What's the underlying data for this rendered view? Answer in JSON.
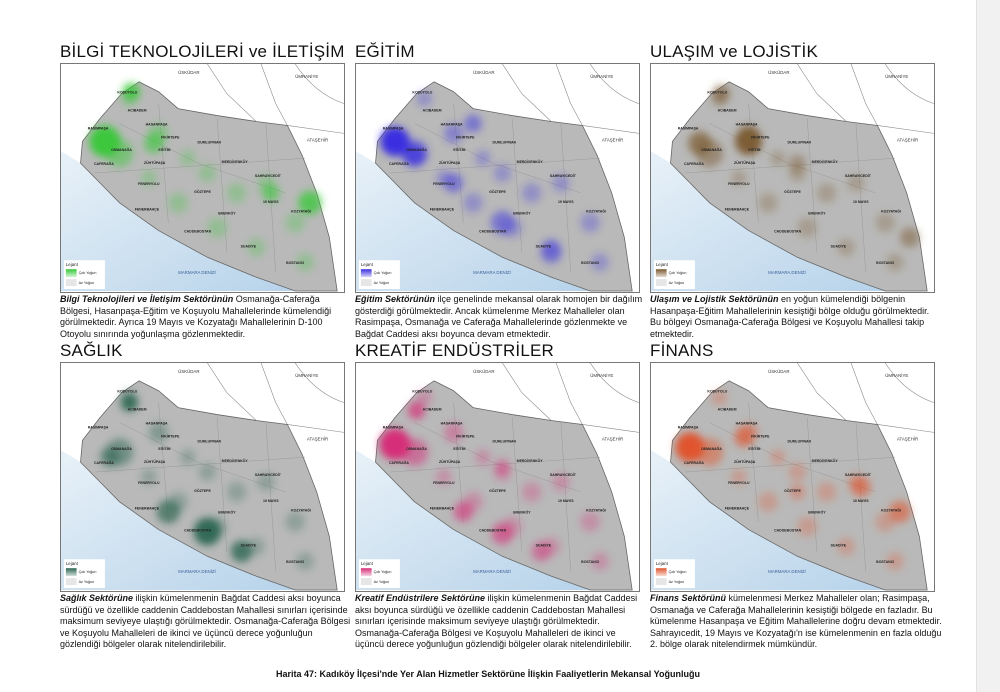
{
  "maps": [
    {
      "title": "BİLGİ TEKNOLOJİLERİ ve İLETİŞİM",
      "color": "#35c835",
      "caption_lead": "Bilgi Teknolojileri ve İletişim Sektörünün",
      "caption_text": " Osmanağa-Caferağa Bölgesi, Hasanpaşa-Eğitim ve Koşuyolu Mahallelerinde kümelendiği görülmektedir. Ayrıca 19 Mayıs ve Kozyatağı Mahallelerinin D-100 Otoyolu sınırında yoğunlaşma gözlenmektedir."
    },
    {
      "title": "EĞİTİM",
      "color": "#3a2fe0",
      "caption_lead": "Eğitim Sektörünün",
      "caption_text": " ilçe genelinde mekansal olarak homojen bir dağılım gösterdiği görülmektedir. Ancak kümelenme Merkez Mahalleler olan Rasimpaşa, Osmanağa ve Caferağa Mahallelerinde gözlenmekte ve Bağdat Caddesi aksı boyunca devam etmektedir."
    },
    {
      "title": "ULAŞIM ve LOJİSTİK",
      "color": "#7a5a30",
      "caption_lead": "Ulaşım ve Lojistik Sektörünün",
      "caption_text": " en yoğun kümelendiği bölgenin Hasanpaşa-Eğitim Mahallelerinin kesiştiği bölge olduğu görülmektedir. Bu bölgeyi Osmanağa-Caferağa Bölgesi ve Koşuyolu Mahallesi takip etmektedir."
    },
    {
      "title": "SAĞLIK",
      "color": "#2c6652",
      "caption_lead": "Sağlık Sektörüne",
      "caption_text": " ilişkin kümelenmenin Bağdat Caddesi aksı boyunca sürdüğü ve özellikle caddenin Caddebostan Mahallesi sınırları içerisinde maksimum seviyeye ulaştığı görülmektedir. Osmanağa-Caferağa Bölgesi ve Koşuyolu Mahalleleri de ikinci ve üçüncü derece yoğunluğun gözlendiği bölgeler olarak nitelendirilebilir."
    },
    {
      "title": "KREATİF ENDÜSTRİLER",
      "color": "#d62e78",
      "caption_lead": "Kreatif Endüstrilere Sektörüne",
      "caption_text": " ilişkin kümelenmenin Bağdat Caddesi aksı boyunca sürdüğü ve özellikle caddenin Caddebostan Mahallesi sınırları içerisinde maksimum seviyeye ulaştığı görülmektedir. Osmanağa-Caferağa Bölgesi ve Koşuyolu Mahalleleri de ikinci ve üçüncü derece yoğunluğun gözlendiği bölgeler olarak nitelendirilebilir."
    },
    {
      "title": "FİNANS",
      "color": "#e0552e",
      "caption_lead": "Finans Sektörünü",
      "caption_text": " kümelenmesi Merkez Mahalleler olan; Rasimpaşa, Osmanağa ve Caferağa Mahallelerinin kesiştiği bölgede en fazladır. Bu kümelenme Hasanpaşa ve Eğitim Mahallelerine doğru devam etmektedir. Sahrayıcedit, 19 Mayıs ve Kozyatağı'n ise kümelenmenin en fazla olduğu 2. bölge olarak nitelendirmek mümkündür."
    }
  ],
  "map_labels": {
    "uskudar": "ÜSKÜDAR",
    "umraniye": "ÜMRANİYE",
    "atasehir": "ATAŞEHİR",
    "sea": "MARMARA DENİZİ",
    "legend_title": "Lejant",
    "legend_high": "Çok Yoğun",
    "legend_low": "Az Yoğun",
    "neighborhoods": [
      "KOŞUYOLU",
      "ACIBADEM",
      "RASİMPAŞA",
      "HASANPAŞA",
      "FİKİRTEPE",
      "DUMLUPINAR",
      "EĞİTİM",
      "OSMANAĞA",
      "CAFERAĞA",
      "ZÜHTÜPAŞA",
      "MERDİVENKÖY",
      "FENERYOLU",
      "SAHRAYICEDİT",
      "19 MAYIS",
      "GÖZTEPE",
      "FENERBAHÇE",
      "ERENKÖY",
      "KOZYATAĞI",
      "CADDEBOSTAN",
      "SUADİYE",
      "BOSTANCI"
    ]
  },
  "figure_caption": "Harita 47: Kadıköy İlçesi'nde Yer Alan Hizmetler Sektörüne İlişkin Faaliyetlerin Mekansal Yoğunluğu"
}
